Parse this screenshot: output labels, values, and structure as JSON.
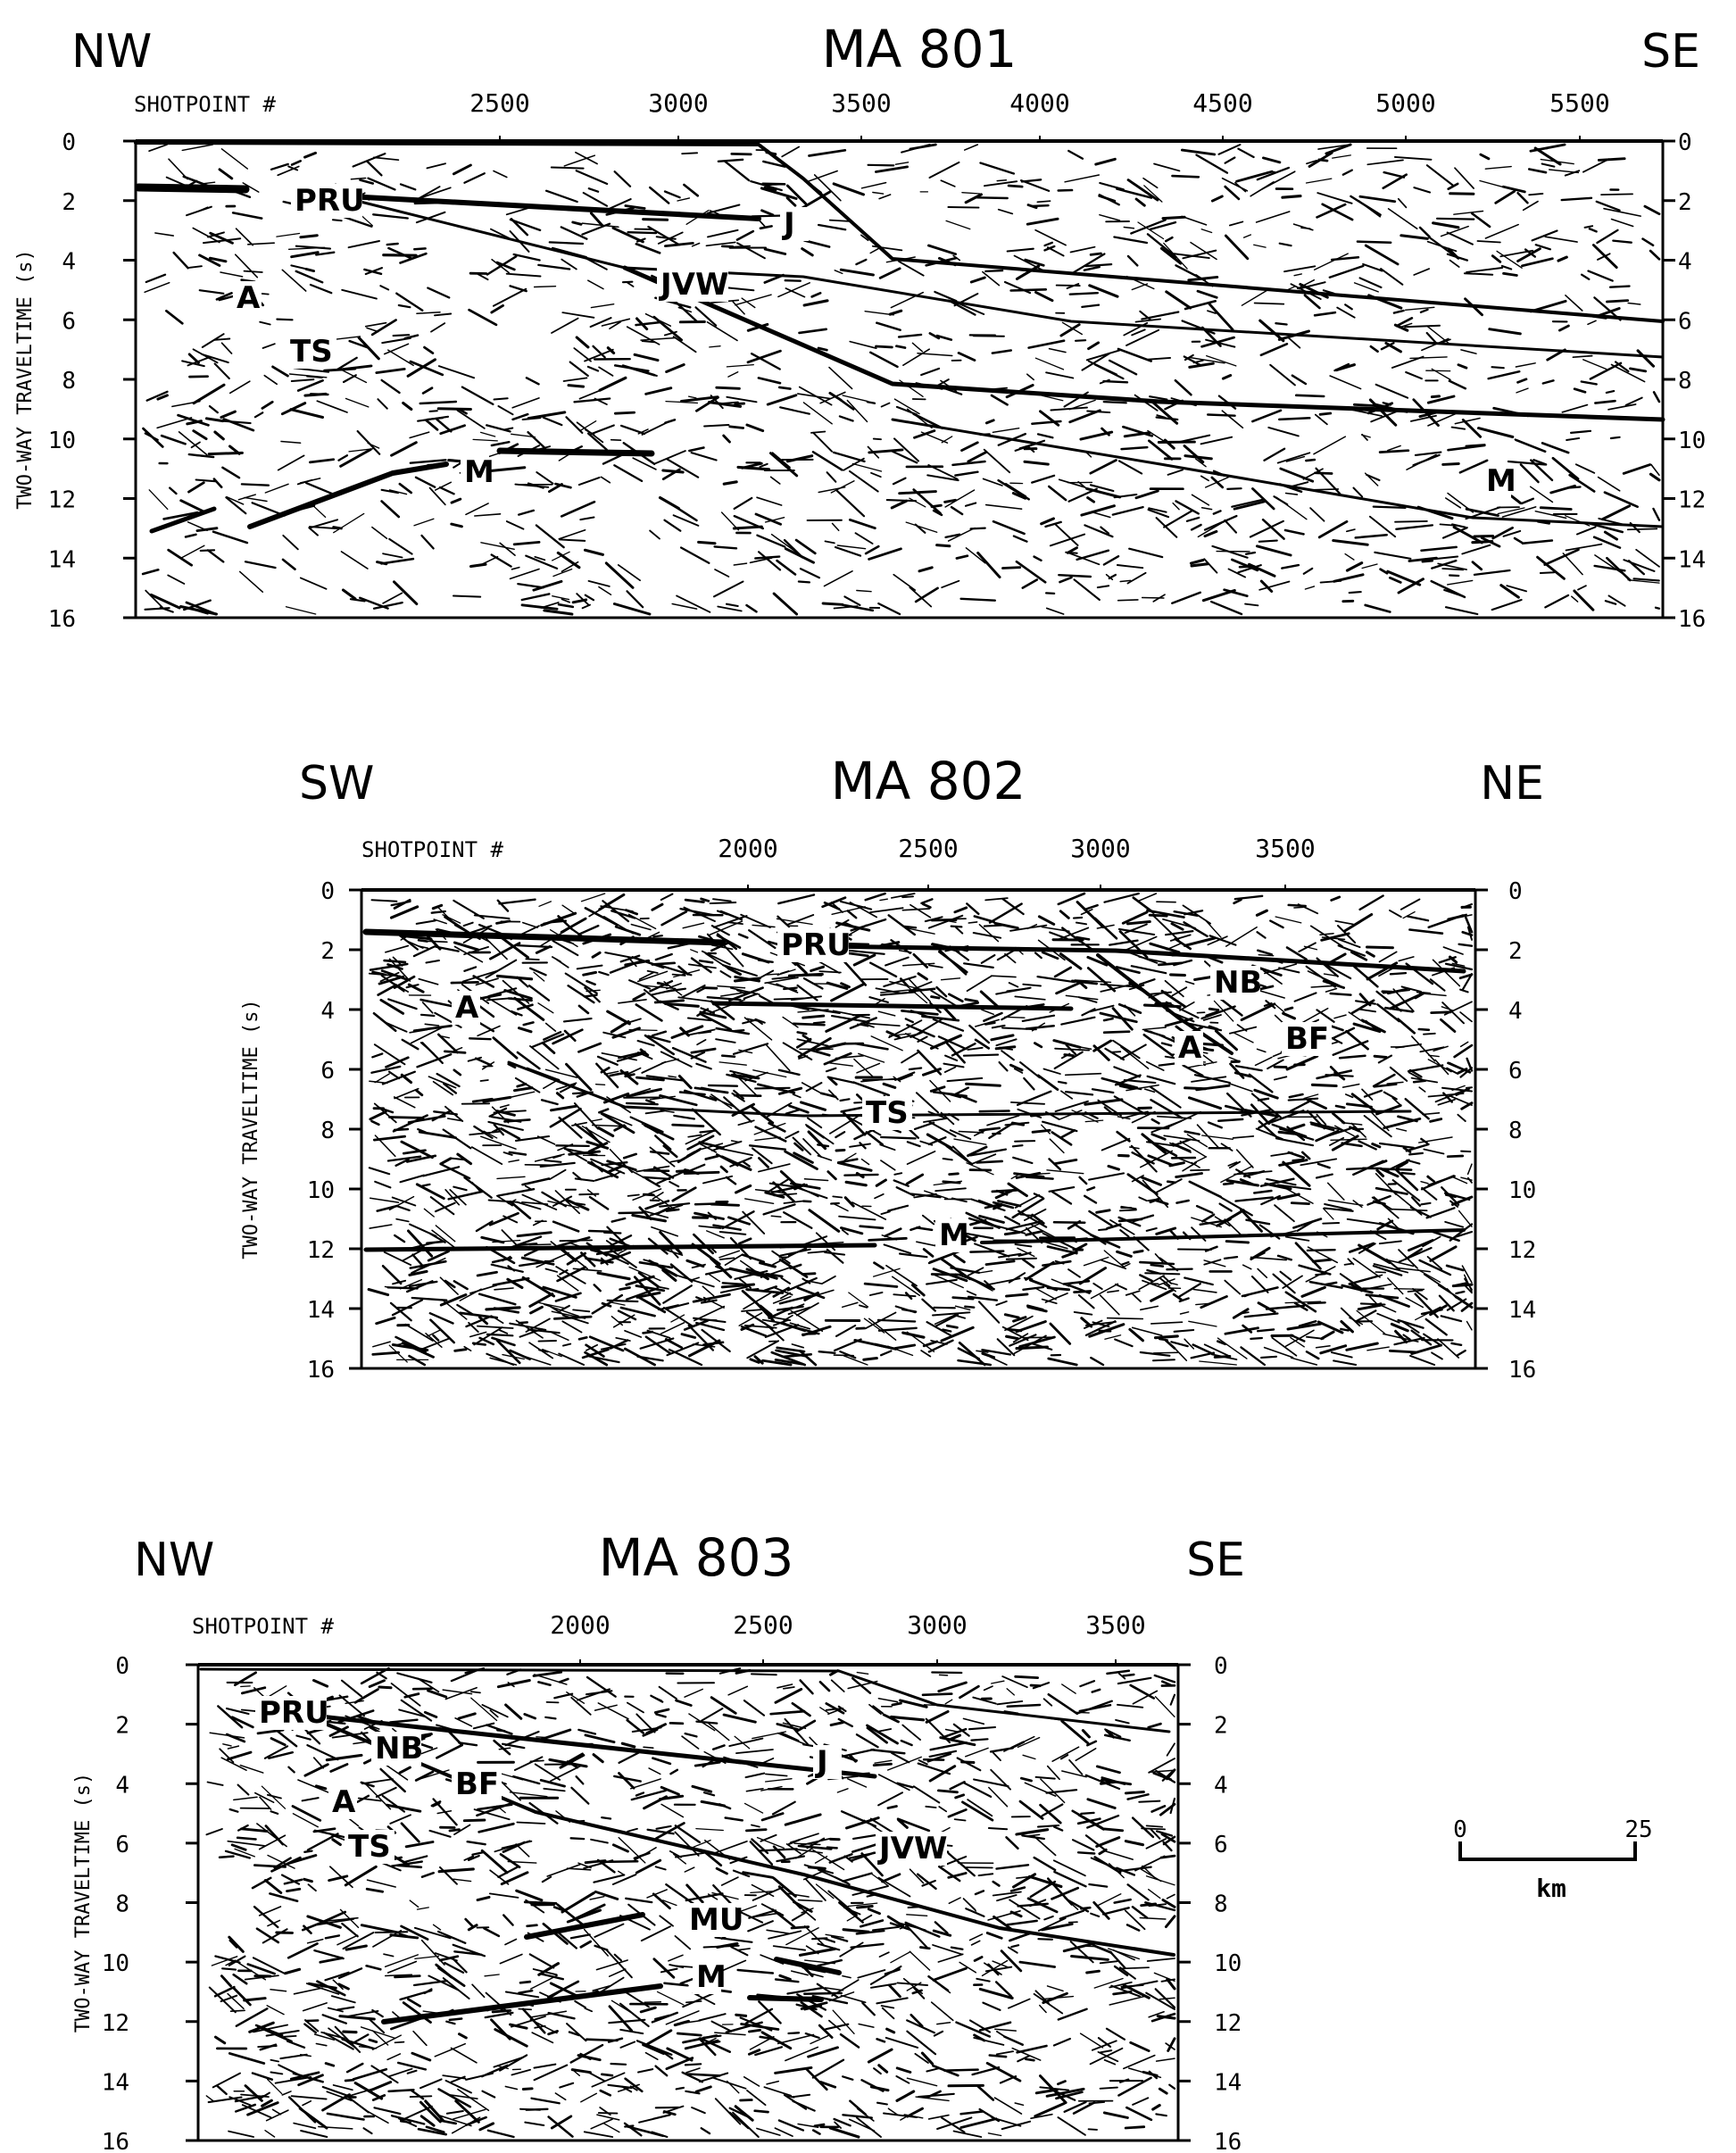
{
  "colors": {
    "ink": "#000000",
    "background": "#ffffff"
  },
  "sections": [
    {
      "id": "ma801",
      "title": "MA 801",
      "dir_left": "NW",
      "dir_right": "SE",
      "shotpoint_label": "SHOTPOINT #",
      "shotpoints": [
        "2500",
        "3000",
        "3500",
        "4000",
        "4500",
        "5000",
        "5500"
      ],
      "y_axis_label": "TWO-WAY TRAVELTIME (s)",
      "y_ticks_left": [
        "0",
        "2",
        "4",
        "6",
        "8",
        "10",
        "12",
        "14",
        "16"
      ],
      "y_ticks_right": [
        "0",
        "2",
        "4",
        "6",
        "8",
        "10",
        "12",
        "14",
        "16"
      ],
      "horizons": [
        "PRU",
        "J",
        "JVW",
        "A",
        "TS",
        "M",
        "M"
      ]
    },
    {
      "id": "ma802",
      "title": "MA 802",
      "dir_left": "SW",
      "dir_right": "NE",
      "shotpoint_label": "SHOTPOINT #",
      "shotpoints": [
        "2000",
        "2500",
        "3000",
        "3500"
      ],
      "y_axis_label": "TWO-WAY TRAVELTIME (s)",
      "y_ticks_left": [
        "0",
        "2",
        "4",
        "6",
        "8",
        "10",
        "12",
        "14",
        "16"
      ],
      "y_ticks_right": [
        "0",
        "2",
        "4",
        "6",
        "8",
        "10",
        "12",
        "14",
        "16"
      ],
      "horizons": [
        "PRU",
        "NB",
        "BF",
        "A",
        "A",
        "TS",
        "M"
      ]
    },
    {
      "id": "ma803",
      "title": "MA 803",
      "dir_left": "NW",
      "dir_right": "SE",
      "shotpoint_label": "SHOTPOINT #",
      "shotpoints": [
        "2000",
        "2500",
        "3000",
        "3500"
      ],
      "y_axis_label": "TWO-WAY TRAVELTIME (s)",
      "y_ticks_left": [
        "0",
        "2",
        "4",
        "6",
        "8",
        "10",
        "12",
        "14",
        "16"
      ],
      "y_ticks_right": [
        "0",
        "2",
        "4",
        "6",
        "8",
        "10",
        "12",
        "14",
        "16"
      ],
      "horizons": [
        "PRU",
        "NB",
        "BF",
        "A",
        "TS",
        "J",
        "JVW",
        "MU",
        "M"
      ]
    }
  ],
  "scale_bar": {
    "min_label": "0",
    "max_label": "25",
    "unit": "km"
  }
}
